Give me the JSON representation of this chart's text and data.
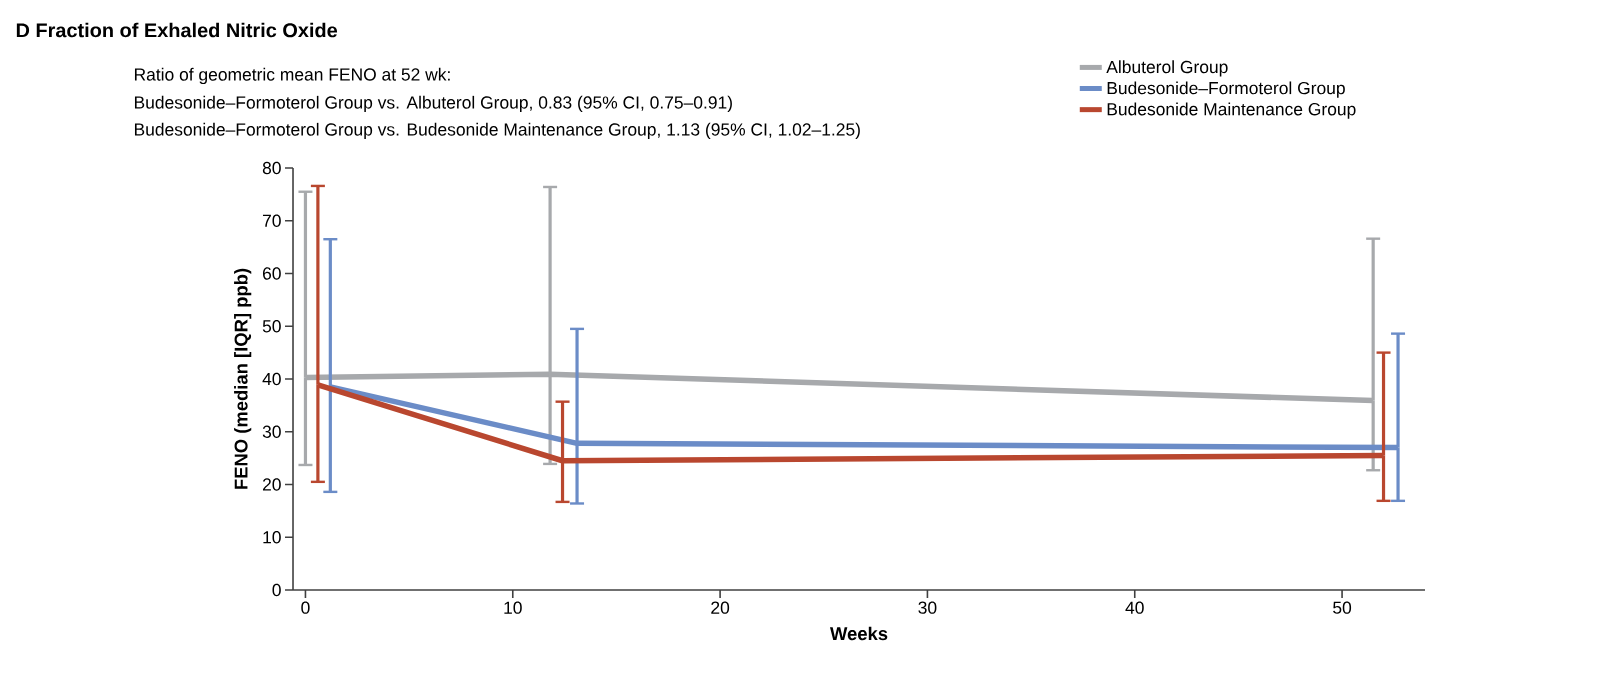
{
  "chart_data": {
    "type": "line",
    "title": "D  Fraction of Exhaled Nitric Oxide",
    "annotations": [
      "Ratio of geometric mean FENO at 52 wk:",
      "Budesonide–Formoterol Group vs. Albuterol Group, 0.83 (95% CI, 0.75–0.91)",
      "Budesonide–Formoterol Group vs. Budesonide Maintenance Group, 1.13 (95% CI, 1.02–1.25)"
    ],
    "xlabel": "Weeks",
    "ylabel": "FENO (median [IQR] ppb)",
    "xlim": [
      -0.6,
      54
    ],
    "ylim": [
      0,
      80
    ],
    "xticks": [
      0,
      10,
      20,
      30,
      40,
      50
    ],
    "yticks": [
      0,
      10,
      20,
      30,
      40,
      50,
      60,
      70,
      80
    ],
    "legend": "top right",
    "marker": "none",
    "line_style": "solid",
    "series": [
      {
        "name": "Albuterol Group",
        "color": "#a7a9ac",
        "x": [
          0,
          11.8,
          51.5
        ],
        "values": [
          40.3,
          40.9,
          35.9
        ],
        "errors": [
          [
            23.7,
            75.5
          ],
          [
            23.9,
            76.4
          ],
          [
            22.7,
            66.6
          ]
        ]
      },
      {
        "name": "Budesonide–Formoterol Group",
        "color": "#6b8cc7",
        "x": [
          1.2,
          13.1,
          52.7
        ],
        "values": [
          38.5,
          27.8,
          27.0
        ],
        "errors": [
          [
            18.6,
            66.5
          ],
          [
            16.4,
            49.5
          ],
          [
            16.9,
            48.6
          ]
        ]
      },
      {
        "name": "Budesonide Maintenance Group",
        "color": "#b9472f",
        "x": [
          0.6,
          12.4,
          52.0
        ],
        "values": [
          38.9,
          24.5,
          25.5
        ],
        "errors": [
          [
            20.5,
            76.6
          ],
          [
            16.7,
            35.7
          ],
          [
            16.9,
            45.0
          ]
        ]
      }
    ]
  }
}
